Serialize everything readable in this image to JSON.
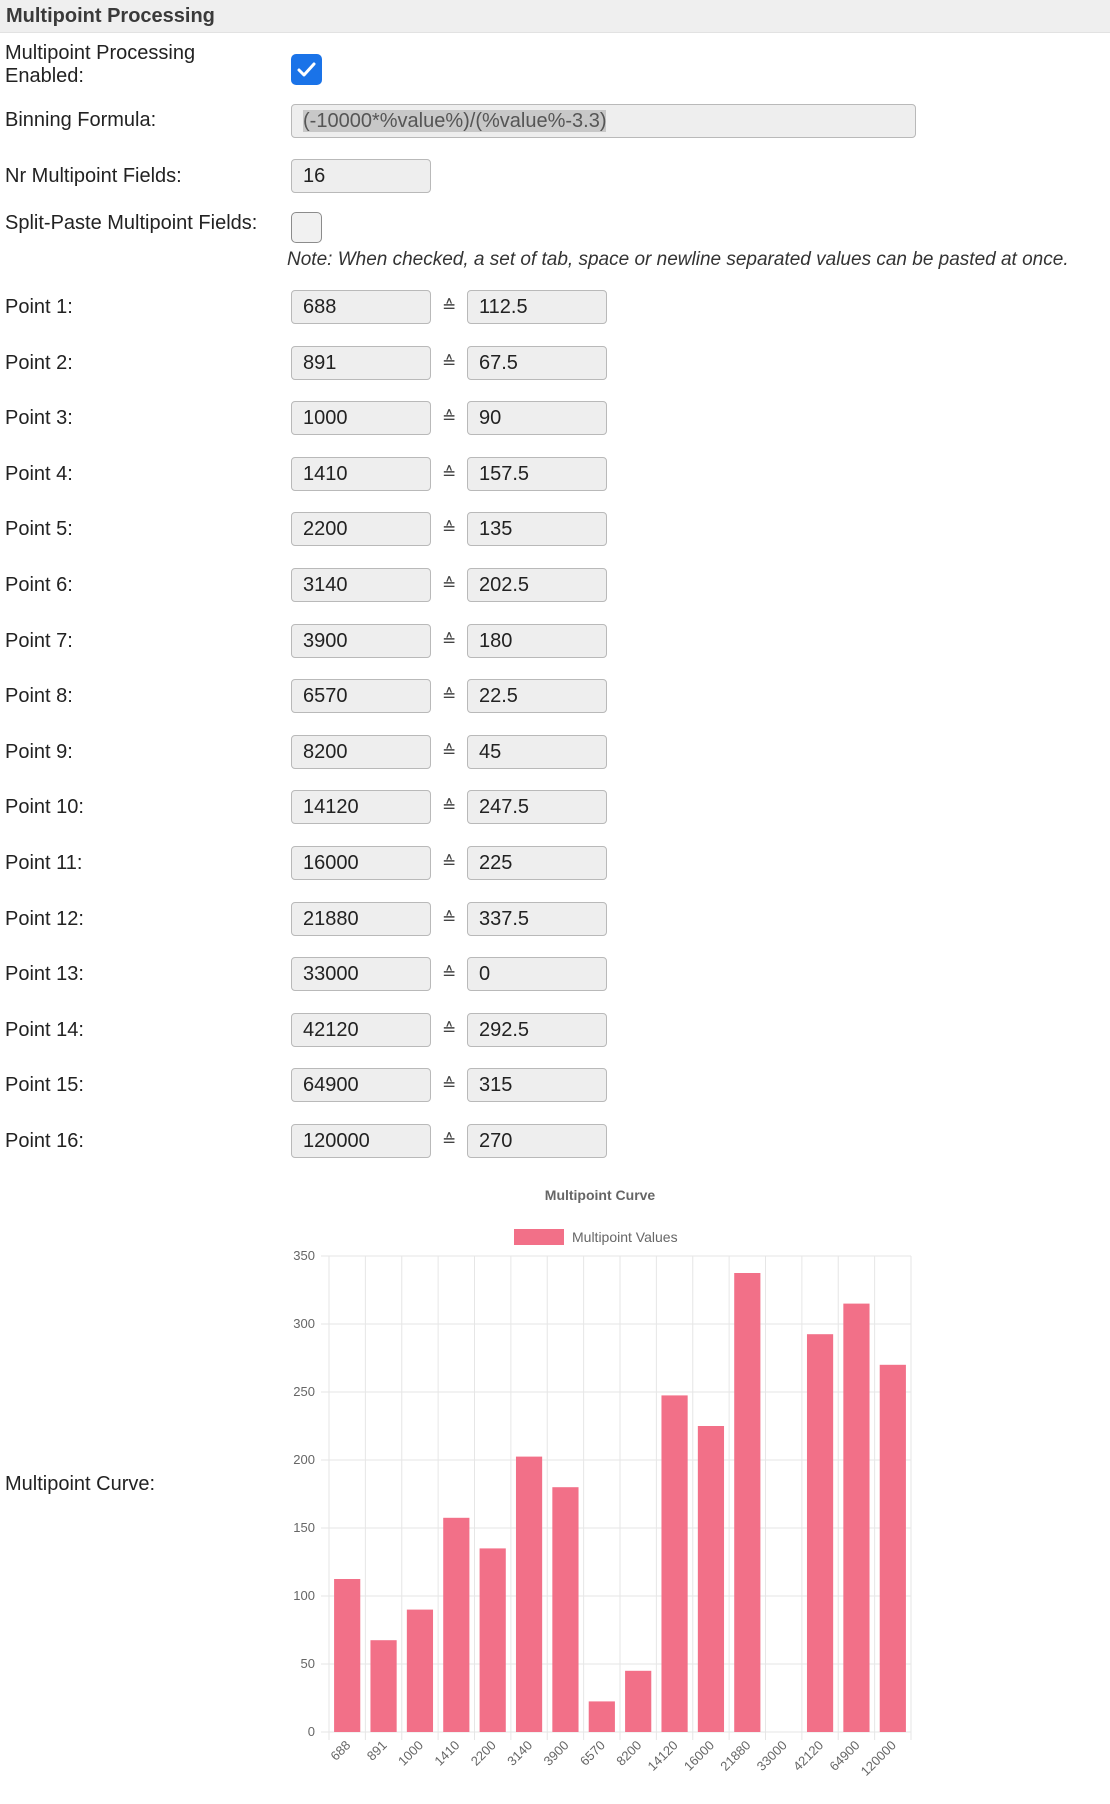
{
  "section": {
    "title": "Multipoint Processing"
  },
  "settings": {
    "enabled_label": "Multipoint Processing Enabled:",
    "enabled_label_line1": "Multipoint Processing",
    "enabled_label_line2": "Enabled:",
    "enabled_checked": true,
    "formula_label": "Binning Formula:",
    "formula_value": "(-10000*%value%)/(%value%-3.3)",
    "nr_fields_label": "Nr Multipoint Fields:",
    "nr_fields_value": "16",
    "split_paste_label": "Split-Paste Multipoint Fields:",
    "split_paste_checked": false,
    "note": "Note: When checked, a set of tab, space or newline separated values can be pasted at once.",
    "equivalence_symbol": "≙"
  },
  "points": [
    {
      "label": "Point 1:",
      "input": "688",
      "output": "112.5"
    },
    {
      "label": "Point 2:",
      "input": "891",
      "output": "67.5"
    },
    {
      "label": "Point 3:",
      "input": "1000",
      "output": "90"
    },
    {
      "label": "Point 4:",
      "input": "1410",
      "output": "157.5"
    },
    {
      "label": "Point 5:",
      "input": "2200",
      "output": "135"
    },
    {
      "label": "Point 6:",
      "input": "3140",
      "output": "202.5"
    },
    {
      "label": "Point 7:",
      "input": "3900",
      "output": "180"
    },
    {
      "label": "Point 8:",
      "input": "6570",
      "output": "22.5"
    },
    {
      "label": "Point 9:",
      "input": "8200",
      "output": "45"
    },
    {
      "label": "Point 10:",
      "input": "14120",
      "output": "247.5"
    },
    {
      "label": "Point 11:",
      "input": "16000",
      "output": "225"
    },
    {
      "label": "Point 12:",
      "input": "21880",
      "output": "337.5"
    },
    {
      "label": "Point 13:",
      "input": "33000",
      "output": "0"
    },
    {
      "label": "Point 14:",
      "input": "42120",
      "output": "292.5"
    },
    {
      "label": "Point 15:",
      "input": "64900",
      "output": "315"
    },
    {
      "label": "Point 16:",
      "input": "120000",
      "output": "270"
    }
  ],
  "curve_label": "Multipoint Curve:",
  "colors": {
    "checkbox_accent": "#1a73e8",
    "bar": "#f27088",
    "grid": "#e6e6e6"
  },
  "chart_data": {
    "type": "bar",
    "title": "Multipoint Curve",
    "categories": [
      "688",
      "891",
      "1000",
      "1410",
      "2200",
      "3140",
      "3900",
      "6570",
      "8200",
      "14120",
      "16000",
      "21880",
      "33000",
      "42120",
      "64900",
      "120000"
    ],
    "series": [
      {
        "name": "Multipoint Values",
        "values": [
          112.5,
          67.5,
          90,
          157.5,
          135,
          202.5,
          180,
          22.5,
          45,
          247.5,
          225,
          337.5,
          0,
          292.5,
          315,
          270
        ]
      }
    ],
    "yticks": [
      "0",
      "50",
      "100",
      "150",
      "200",
      "250",
      "300",
      "350"
    ],
    "ylim": [
      0,
      350
    ],
    "grid": true,
    "legend_position": "top"
  }
}
